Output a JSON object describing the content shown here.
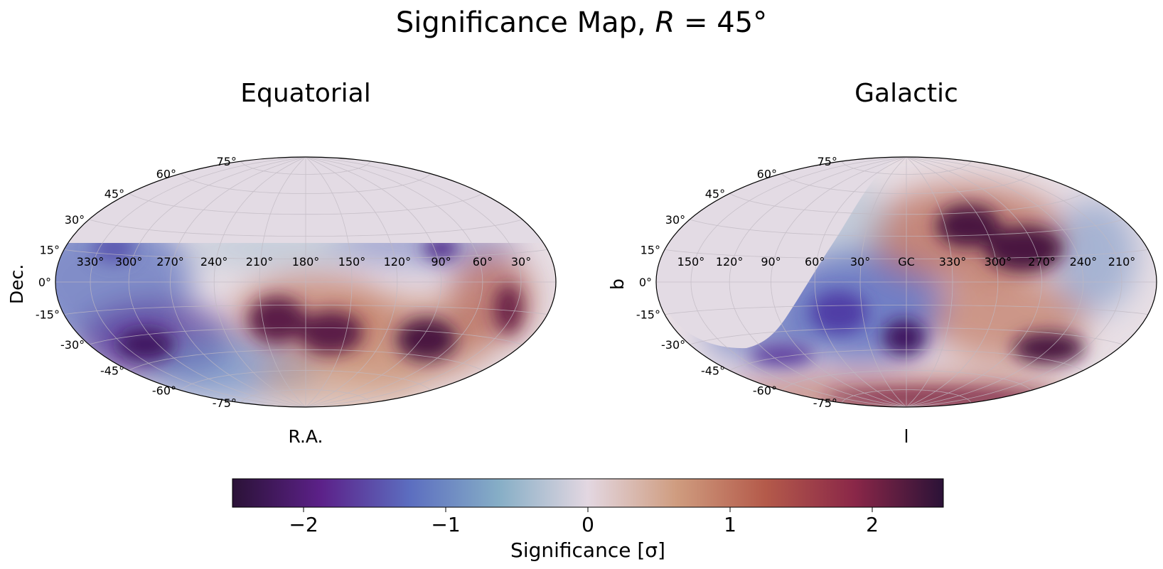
{
  "figure": {
    "title": "Significance Map, R = 45°"
  },
  "chart_data": [
    {
      "type": "heatmap",
      "title": "Equatorial",
      "projection": "hammer",
      "xlabel": "R.A.",
      "ylabel": "Dec.",
      "lon_tick_labels": [
        "330°",
        "300°",
        "270°",
        "240°",
        "210°",
        "180°",
        "150°",
        "120°",
        "90°",
        "60°",
        "30°"
      ],
      "lat_tick_labels": [
        "75°",
        "60°",
        "45°",
        "30°",
        "15°",
        "0°",
        "-15°",
        "-30°",
        "-45°",
        "-60°",
        "-75°"
      ],
      "coverage": "no data north of Dec ≈ +20°",
      "grid": true,
      "hotspots": [
        {
          "lon": 195,
          "lat": -15,
          "sigma": 2.3
        },
        {
          "lon": 160,
          "lat": -22,
          "sigma": 2.3
        },
        {
          "lon": 80,
          "lat": -25,
          "sigma": 2.4
        },
        {
          "lon": 35,
          "lat": -10,
          "sigma": 2.0
        },
        {
          "lon": 290,
          "lat": -28,
          "sigma": -2.4
        },
        {
          "lon": 330,
          "lat": 0,
          "sigma": -1.3
        },
        {
          "lon": 85,
          "lat": 15,
          "sigma": -1.6
        },
        {
          "lon": 250,
          "lat": -65,
          "sigma": -1.2
        }
      ]
    },
    {
      "type": "heatmap",
      "title": "Galactic",
      "projection": "hammer",
      "xlabel": "l",
      "ylabel": "b",
      "lon_tick_labels": [
        "150°",
        "120°",
        "90°",
        "60°",
        "30°",
        "GC",
        "330°",
        "300°",
        "270°",
        "240°",
        "210°"
      ],
      "lat_tick_labels": [
        "75°",
        "60°",
        "45°",
        "30°",
        "15°",
        "0°",
        "-15°",
        "-30°",
        "-45°",
        "-60°",
        "-75°"
      ],
      "coverage": "no data in the region corresponding to equatorial Dec > +20°",
      "grid": true,
      "hotspots": [
        {
          "lon": 330,
          "lat": 35,
          "sigma": 2.4
        },
        {
          "lon": 285,
          "lat": 25,
          "sigma": 2.3
        },
        {
          "lon": 250,
          "lat": -28,
          "sigma": 2.3
        },
        {
          "lon": 340,
          "lat": -60,
          "sigma": 1.5
        },
        {
          "lon": 0,
          "lat": -30,
          "sigma": -2.3
        },
        {
          "lon": 50,
          "lat": -25,
          "sigma": -1.8
        },
        {
          "lon": 210,
          "lat": 5,
          "sigma": -1.0
        }
      ]
    }
  ],
  "colorbar": {
    "label": "Significance [σ]",
    "range": [
      -2.5,
      2.5
    ],
    "ticks": [
      -2,
      -1,
      0,
      1,
      2
    ],
    "tick_labels": [
      "−2",
      "−1",
      "0",
      "1",
      "2"
    ],
    "colormap": "twilight_shifted",
    "color_stops": [
      "#2b1237",
      "#5c2189",
      "#5c6ec0",
      "#86aec6",
      "#e3d7e1",
      "#cf9c7f",
      "#b45a4a",
      "#8a2748",
      "#2b1237"
    ]
  },
  "colors": {
    "masked": "#e3dbe4",
    "grid": "#c0b9c2"
  }
}
